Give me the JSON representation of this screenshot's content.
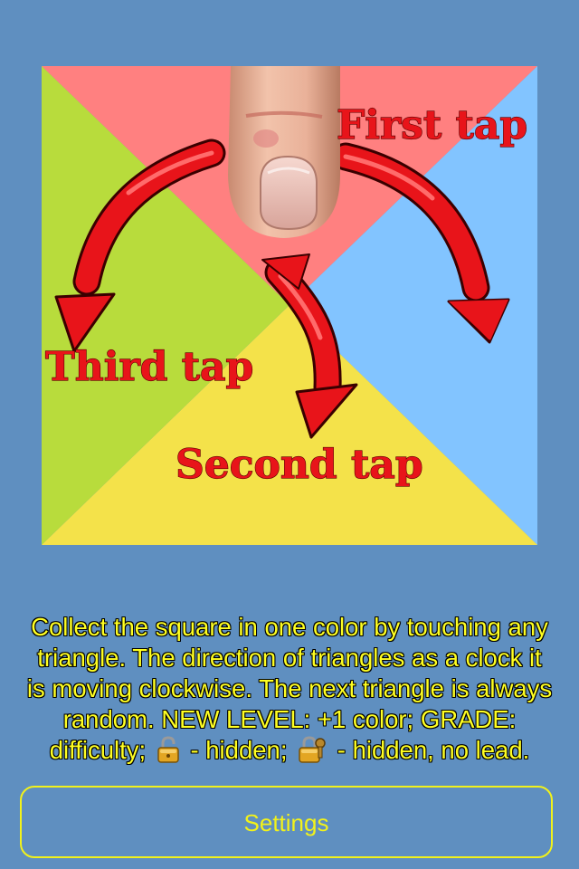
{
  "tutorial": {
    "labels": {
      "first": "First tap",
      "second": "Second tap",
      "third": "Third tap"
    },
    "colors": {
      "top": "#ff8080",
      "right": "#82c4ff",
      "bottom": "#f4e24a",
      "left": "#b8dc3c",
      "arrow": "#e8141a"
    }
  },
  "instructions": {
    "line1": "Collect the square in one color by touching any",
    "line2": "triangle. The direction of triangles as a clock it",
    "line3": "is moving clockwise. The next triangle is always",
    "line4": "random. NEW LEVEL: +1 color; GRADE:",
    "line5_a": "difficulty;",
    "line5_b": "- hidden;",
    "line5_c": "- hidden, no lead.",
    "icons": [
      "unlocked-padlock-icon",
      "padlock-with-key-icon"
    ]
  },
  "settings": {
    "label": "Settings"
  }
}
